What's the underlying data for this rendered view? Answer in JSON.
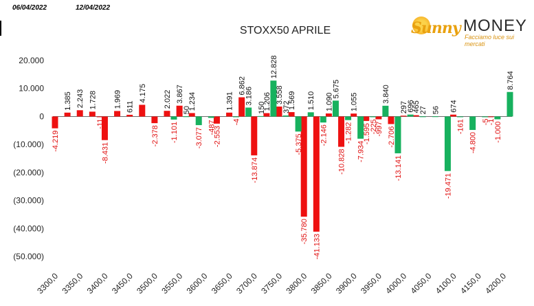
{
  "header": {
    "date_left": "06/04/2022",
    "date_right": "12/04/2022"
  },
  "logo": {
    "word1": "Sunny",
    "word2": "MONEY",
    "tagline": "Facciamo luce sui mercati"
  },
  "chart_data": {
    "type": "bar",
    "title": "STOXX50 APRILE",
    "ylim": [
      -50000,
      20000
    ],
    "yticks": [
      20000,
      10000,
      0,
      -10000,
      -20000,
      -30000,
      -40000,
      -50000
    ],
    "ytick_labels": [
      "20.000",
      "10.000",
      "0",
      "(10.000)",
      "(20.000)",
      "(30.000)",
      "(40.000)",
      "(50.000)"
    ],
    "xlim": [
      3300,
      4200
    ],
    "xticks": [
      3300,
      3350,
      3400,
      3450,
      3500,
      3550,
      3600,
      3650,
      3700,
      3750,
      3800,
      3850,
      3900,
      3950,
      4000,
      4050,
      4100,
      4150,
      4200
    ],
    "xtick_labels": [
      "3300,0",
      "3350,0",
      "3400,0",
      "3450,0",
      "3500,0",
      "3550,0",
      "3600,0",
      "3650,0",
      "3700,0",
      "3750,0",
      "3800,0",
      "3850,0",
      "3900,0",
      "3950,0",
      "4000,0",
      "4050,0",
      "4100,0",
      "4150,0",
      "4200,0"
    ],
    "grid": false,
    "colors": {
      "red": "#ee1111",
      "green": "#17b15e"
    },
    "series": [
      {
        "color_key": "red",
        "points": [
          {
            "x": 3300,
            "y": -4219,
            "label": "-4.219"
          },
          {
            "x": 3325,
            "y": 1385,
            "label": "1.385"
          },
          {
            "x": 3350,
            "y": 2243,
            "label": "2.243"
          },
          {
            "x": 3375,
            "y": 1728,
            "label": "1.728"
          },
          {
            "x": 3390,
            "y": -11,
            "label": "-11"
          },
          {
            "x": 3400,
            "y": -8431,
            "label": "-8.431"
          },
          {
            "x": 3425,
            "y": 1969,
            "label": "1.969"
          },
          {
            "x": 3450,
            "y": 611,
            "label": "611"
          },
          {
            "x": 3475,
            "y": 4175,
            "label": "4.175"
          },
          {
            "x": 3500,
            "y": -2378,
            "label": "-2.378"
          },
          {
            "x": 3525,
            "y": 2022,
            "label": "2.022"
          },
          {
            "x": 3550,
            "y": 3867,
            "label": "3.867"
          },
          {
            "x": 3575,
            "y": 1234,
            "label": "1.234"
          },
          {
            "x": 3625,
            "y": -2553,
            "label": "-2.553"
          },
          {
            "x": 3650,
            "y": 1391,
            "label": "1.391"
          },
          {
            "x": 3675,
            "y": 6862,
            "label": "6.862"
          },
          {
            "x": 3700,
            "y": -13874,
            "label": "-13.874"
          },
          {
            "x": 3725,
            "y": 1206,
            "label": "1.206"
          },
          {
            "x": 3750,
            "y": 3558,
            "label": "3.558"
          },
          {
            "x": 3775,
            "y": 1569,
            "label": "1.569"
          },
          {
            "x": 3800,
            "y": -35780,
            "label": "-35.780"
          },
          {
            "x": 3825,
            "y": -41133,
            "label": "-41.133"
          },
          {
            "x": 3850,
            "y": 1090,
            "label": "1.090"
          },
          {
            "x": 3875,
            "y": -10828,
            "label": "-10.828"
          },
          {
            "x": 3900,
            "y": 1055,
            "label": "1.055"
          },
          {
            "x": 3925,
            "y": -1595,
            "label": "-1.595"
          },
          {
            "x": 3950,
            "y": -997,
            "label": "-997"
          },
          {
            "x": 3975,
            "y": -2706,
            "label": "-2.706"
          },
          {
            "x": 4000,
            "y": 297,
            "label": "297"
          },
          {
            "x": 4025,
            "y": 465,
            "label": "465"
          },
          {
            "x": 4100,
            "y": 674,
            "label": "674"
          },
          {
            "x": 4175,
            "y": -1,
            "label": "-1"
          }
        ]
      },
      {
        "color_key": "green",
        "points": [
          {
            "x": 3525,
            "y": -1101,
            "label": "-1.101"
          },
          {
            "x": 3550,
            "y": 50,
            "label": "50"
          },
          {
            "x": 3575,
            "y": -3077,
            "label": "-3.077"
          },
          {
            "x": 3600,
            "y": -487,
            "label": "-487"
          },
          {
            "x": 3650,
            "y": -4,
            "label": "-4"
          },
          {
            "x": 3675,
            "y": 3186,
            "label": "3.186"
          },
          {
            "x": 3700,
            "y": 150,
            "label": "150"
          },
          {
            "x": 3725,
            "y": 12828,
            "label": "12.828"
          },
          {
            "x": 3750,
            "y": 372,
            "label": "372"
          },
          {
            "x": 3775,
            "y": -5375,
            "label": "-5.375"
          },
          {
            "x": 3800,
            "y": 1510,
            "label": "1.510"
          },
          {
            "x": 3825,
            "y": -2146,
            "label": "-2.146"
          },
          {
            "x": 3850,
            "y": 5675,
            "label": "5.675"
          },
          {
            "x": 3875,
            "y": -1282,
            "label": "-1.282"
          },
          {
            "x": 3900,
            "y": -7934,
            "label": "-7.934"
          },
          {
            "x": 3925,
            "y": -225,
            "label": "-225"
          },
          {
            "x": 3950,
            "y": 3840,
            "label": "3.840"
          },
          {
            "x": 3975,
            "y": -13141,
            "label": "-13.141"
          },
          {
            "x": 4000,
            "y": 696,
            "label": "696"
          },
          {
            "x": 4025,
            "y": 27,
            "label": "27"
          },
          {
            "x": 4050,
            "y": 56,
            "label": "56"
          },
          {
            "x": 4075,
            "y": -19471,
            "label": "-19.471"
          },
          {
            "x": 4100,
            "y": -161,
            "label": "-161"
          },
          {
            "x": 4125,
            "y": -4800,
            "label": "-4.800"
          },
          {
            "x": 4150,
            "y": -5,
            "label": "-5"
          },
          {
            "x": 4175,
            "y": -1000,
            "label": "-1.000"
          },
          {
            "x": 4200,
            "y": 8764,
            "label": "8.764"
          }
        ]
      }
    ]
  }
}
